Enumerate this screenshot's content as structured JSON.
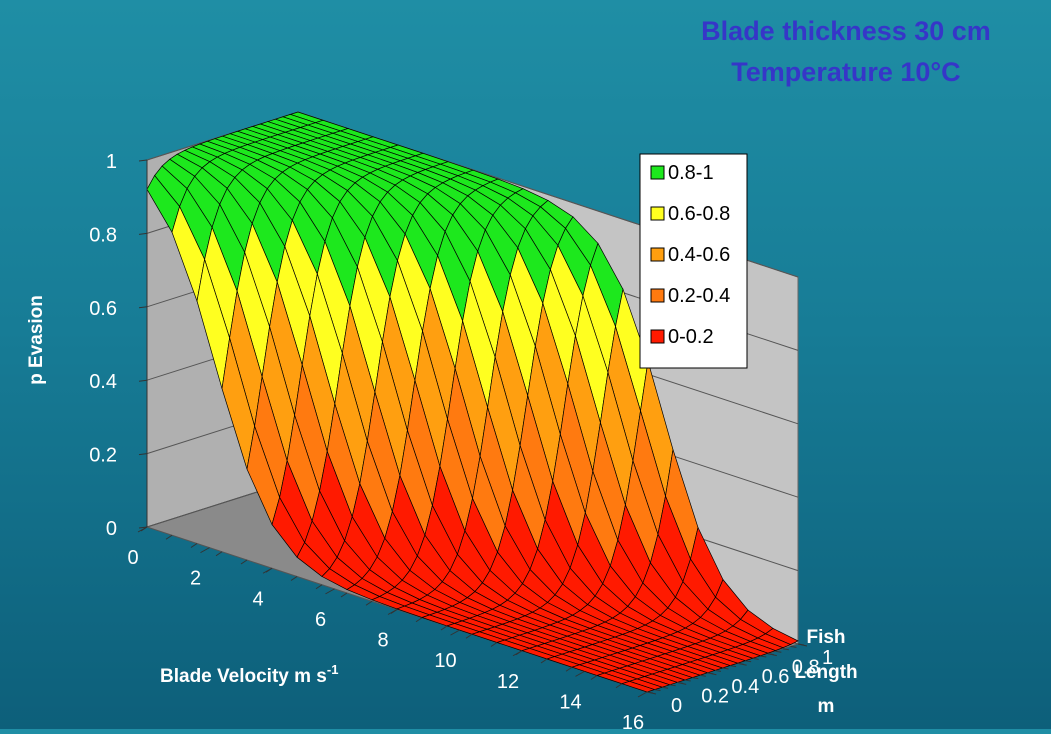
{
  "colors": {
    "title": "#3636c8",
    "wall_back": "#c4c4c4",
    "wall_side": "#b0b0b0",
    "floor": "#8a8a8a",
    "band_0_0.2": "#ff1a00",
    "band_0.2_0.4": "#ff7a10",
    "band_0.4_0.6": "#ff9f10",
    "band_0.6_0.8": "#ffff20",
    "band_0.8_1": "#1de81d"
  },
  "chart_data": {
    "type": "surface",
    "title_lines": [
      "Blade thickness 30 cm",
      "Temperature 10°C"
    ],
    "z_axis_label": "p Evasion",
    "x_axis_label": "Blade Velocity  m s",
    "x_axis_label_sup": "-1",
    "y_axis_label_lines": [
      "Fish",
      "Length",
      "m"
    ],
    "z_ticks": [
      "0",
      "0.2",
      "0.4",
      "0.6",
      "0.8",
      "1"
    ],
    "x_ticks": [
      "0",
      "2",
      "4",
      "6",
      "8",
      "10",
      "12",
      "14",
      "16"
    ],
    "y_ticks": [
      "0",
      "0.2",
      "0.4",
      "0.6",
      "0.8",
      "1"
    ],
    "x_range": [
      0,
      16
    ],
    "y_range": [
      0,
      1
    ],
    "z_range": [
      0,
      1
    ],
    "legend_position": "top-right",
    "legend": [
      {
        "label": "0.8-1",
        "color": "#1de81d"
      },
      {
        "label": "0.6-0.8",
        "color": "#ffff20"
      },
      {
        "label": "0.4-0.6",
        "color": "#ff9f10"
      },
      {
        "label": "0.2-0.4",
        "color": "#ff7a10"
      },
      {
        "label": "0-0.2",
        "color": "#ff1a00"
      }
    ],
    "surface": {
      "description_model": "p_evasion ≈ 1 / (1 + exp((v - (2.2 + 9.5 * L)) / 0.9)), clipped to 0-1; near 0 at long blade velocity and short fish length",
      "x_samples": [
        0,
        0.8,
        1.6,
        2.4,
        3.2,
        4.0,
        4.8,
        5.6,
        6.4,
        7.2,
        8.0,
        8.8,
        9.6,
        10.4,
        11.2,
        12.0,
        12.8,
        13.6,
        14.4,
        15.2,
        16.0
      ],
      "y_samples": [
        0,
        0.05,
        0.1,
        0.15,
        0.2,
        0.25,
        0.3,
        0.35,
        0.4,
        0.45,
        0.5,
        0.55,
        0.6,
        0.65,
        0.7,
        0.75,
        0.8,
        0.85,
        0.9,
        0.95,
        1.0
      ]
    }
  }
}
